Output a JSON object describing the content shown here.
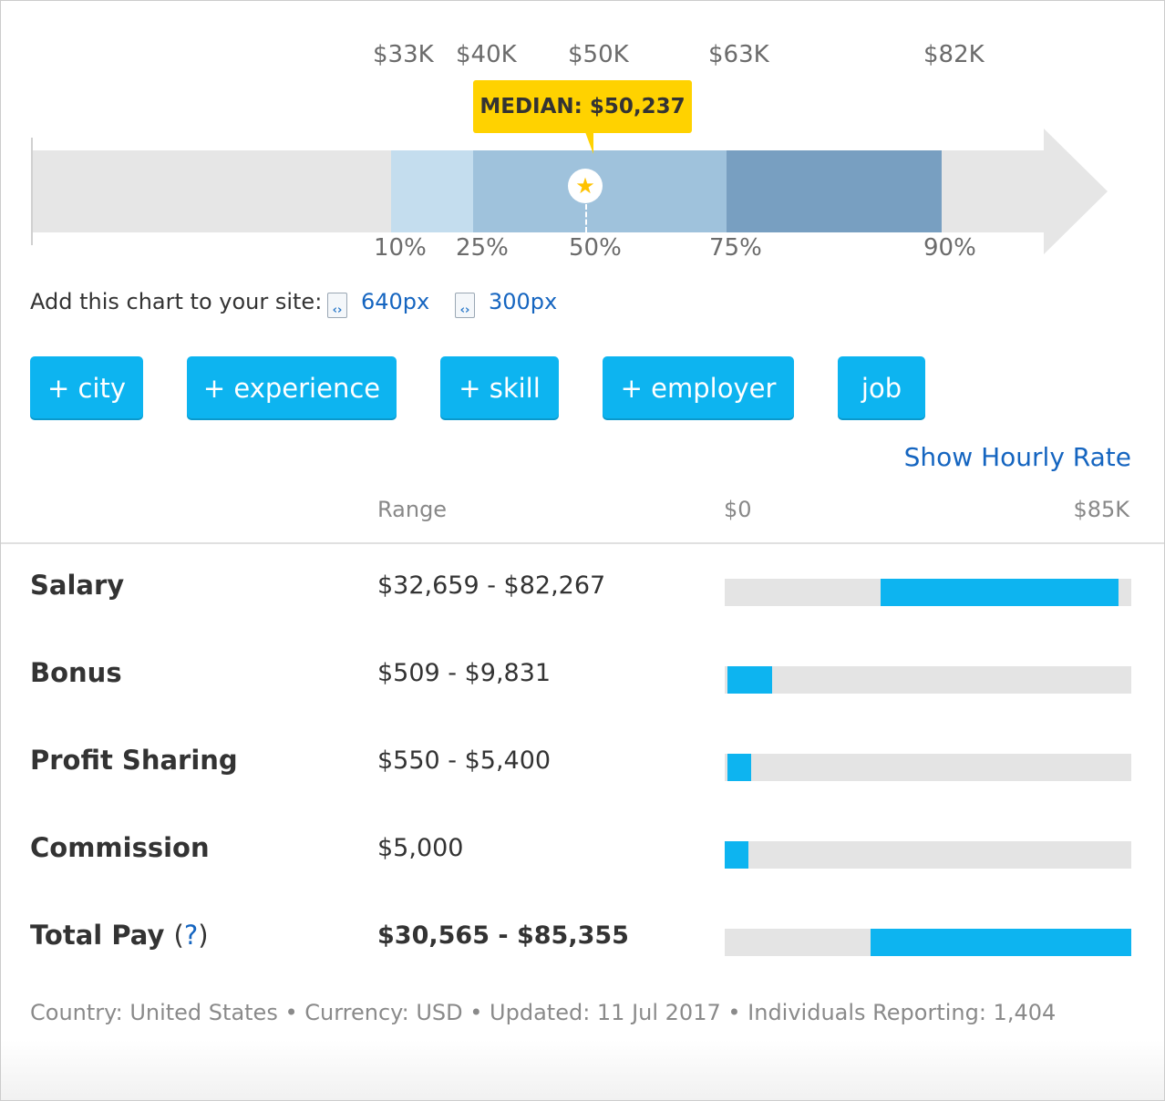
{
  "colors": {
    "band_10_25": "#c4ddee",
    "band_25_75": "#9fc2dc",
    "band_75_90": "#789fc1",
    "arrow": "#e6e6e6",
    "median": "#ffd200",
    "bar_fill": "#0db4f0",
    "bar_track": "#e4e4e4",
    "link": "#1565c0"
  },
  "chart_data": [
    {
      "type": "bar",
      "description_kind": "percentile-range",
      "percentiles": [
        {
          "label": "10%",
          "value_label": "$33K",
          "value": 33000
        },
        {
          "label": "25%",
          "value_label": "$40K",
          "value": 40000
        },
        {
          "label": "50%",
          "value_label": "$50K",
          "value": 50000
        },
        {
          "label": "75%",
          "value_label": "$63K",
          "value": 63000
        },
        {
          "label": "90%",
          "value_label": "$82K",
          "value": 82000
        }
      ],
      "median": {
        "label": "MEDIAN: $50,237",
        "value": 50237
      }
    },
    {
      "type": "bar",
      "description_kind": "range-bars",
      "xlim": [
        0,
        85000
      ],
      "axis_labels": {
        "min": "$0",
        "max": "$85K"
      },
      "series": [
        {
          "name": "Salary",
          "range_text": "$32,659 - $82,267",
          "low": 32659,
          "high": 82267
        },
        {
          "name": "Bonus",
          "range_text": "$509 - $9,831",
          "low": 509,
          "high": 9831
        },
        {
          "name": "Profit Sharing",
          "range_text": "$550 - $5,400",
          "low": 550,
          "high": 5400
        },
        {
          "name": "Commission",
          "range_text": "$5,000",
          "low": 0,
          "high": 5000
        },
        {
          "name": "Total Pay",
          "range_text": "$30,565 - $85,355",
          "low": 30565,
          "high": 85355
        }
      ]
    }
  ],
  "embed": {
    "label": "Add this chart to your site:",
    "options": [
      "640px",
      "300px"
    ]
  },
  "filters": [
    "+ city",
    "+ experience",
    "+ skill",
    "+ employer",
    "job"
  ],
  "hourly_link": "Show Hourly Rate",
  "table": {
    "col_range": "Range",
    "col_min": "$0",
    "col_max": "$85K",
    "total_help": "?",
    "total_help_open": "(",
    "total_help_close": ")"
  },
  "footer": "Country: United States • Currency: USD • Updated: 11 Jul 2017 • Individuals Reporting: 1,404"
}
